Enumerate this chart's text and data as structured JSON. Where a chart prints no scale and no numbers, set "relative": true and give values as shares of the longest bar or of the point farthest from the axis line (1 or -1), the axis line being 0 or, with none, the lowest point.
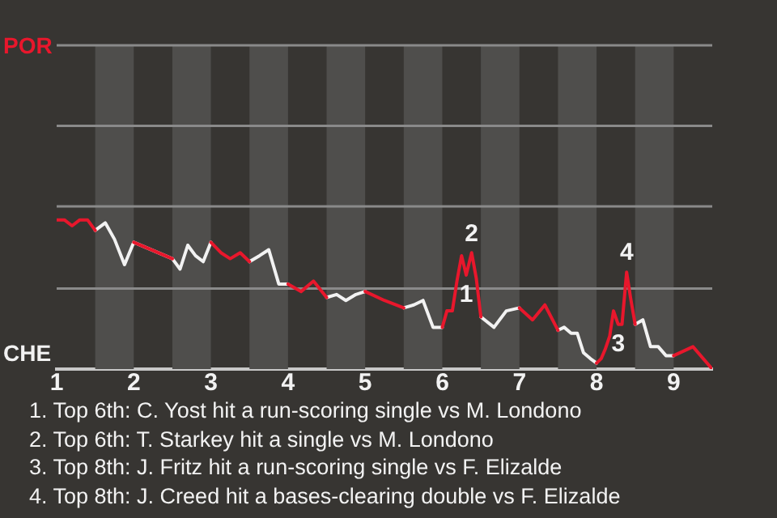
{
  "chart_data": {
    "type": "line",
    "relative": true,
    "x": [
      1.0,
      1.1,
      1.2,
      1.3,
      1.4,
      1.5,
      1.63,
      1.75,
      1.88,
      2.0,
      2.5,
      2.6,
      2.7,
      2.8,
      2.9,
      3.0,
      3.13,
      3.25,
      3.38,
      3.5,
      3.63,
      3.75,
      3.88,
      4.0,
      4.17,
      4.33,
      4.5,
      4.63,
      4.75,
      4.88,
      5.0,
      5.25,
      5.5,
      5.63,
      5.75,
      5.88,
      6.0,
      6.06,
      6.13,
      6.19,
      6.25,
      6.31,
      6.38,
      6.44,
      6.5,
      6.67,
      6.83,
      7.0,
      7.17,
      7.33,
      7.5,
      7.58,
      7.67,
      7.75,
      7.83,
      7.92,
      8.0,
      8.06,
      8.11,
      8.17,
      8.22,
      8.28,
      8.33,
      8.39,
      8.44,
      8.5,
      8.6,
      8.7,
      8.8,
      8.9,
      9.0,
      9.25,
      9.5
    ],
    "xlim": [
      1,
      9.5
    ],
    "xticks": [
      1,
      2,
      3,
      4,
      5,
      6,
      7,
      8,
      9
    ],
    "legend": false,
    "marker": "none",
    "line_style": "solid",
    "series": [
      {
        "color": "#e8172c",
        "values": [
          1.0,
          1.0,
          0.96,
          1.0,
          1.0,
          0.93,
          null,
          null,
          null,
          0.85,
          0.74,
          null,
          null,
          null,
          null,
          0.85,
          0.78,
          0.74,
          0.78,
          0.72,
          null,
          null,
          null,
          0.57,
          0.52,
          0.59,
          0.48,
          null,
          null,
          null,
          0.52,
          0.46,
          0.41,
          null,
          null,
          null,
          0.28,
          0.39,
          0.39,
          0.59,
          0.76,
          0.63,
          0.78,
          0.61,
          0.35,
          null,
          null,
          0.41,
          0.33,
          0.43,
          0.26,
          null,
          null,
          null,
          null,
          null,
          0.04,
          0.07,
          0.13,
          0.22,
          0.39,
          0.3,
          0.3,
          0.65,
          0.48,
          0.3,
          null,
          null,
          null,
          null,
          0.09,
          0.15,
          0
        ]
      },
      {
        "color": "#f2f2f2",
        "values": [
          null,
          null,
          null,
          null,
          null,
          0.93,
          0.98,
          0.87,
          0.7,
          0.85,
          0.74,
          0.67,
          0.83,
          0.76,
          0.72,
          0.85,
          null,
          null,
          null,
          0.72,
          0.76,
          0.8,
          0.57,
          0.57,
          null,
          null,
          0.48,
          0.5,
          0.46,
          0.5,
          0.52,
          null,
          0.41,
          0.43,
          0.46,
          0.28,
          0.28,
          null,
          null,
          null,
          null,
          null,
          null,
          null,
          0.35,
          0.28,
          0.39,
          0.41,
          null,
          null,
          0.26,
          0.28,
          0.24,
          0.24,
          0.11,
          0.07,
          0.04,
          null,
          null,
          null,
          null,
          null,
          null,
          null,
          null,
          0.3,
          0.33,
          0.15,
          0.15,
          0.09,
          0.09,
          null,
          null
        ]
      }
    ],
    "ref_lines": [
      {
        "axis": "y",
        "value": 0.54,
        "color": "#8a8a8a"
      },
      {
        "axis": "y",
        "value": 1.09,
        "color": "#8a8a8a"
      },
      {
        "axis": "y",
        "value": 1.63,
        "color": "#8a8a8a"
      },
      {
        "axis": "y",
        "value": 2.17,
        "color": "#8a8a8a"
      }
    ],
    "bands": [
      {
        "axis": "x",
        "from": 1.5,
        "to": 2.0,
        "color": "#4f4e4c"
      },
      {
        "axis": "x",
        "from": 2.5,
        "to": 3.0,
        "color": "#4f4e4c"
      },
      {
        "axis": "x",
        "from": 3.5,
        "to": 4.0,
        "color": "#4f4e4c"
      },
      {
        "axis": "x",
        "from": 4.5,
        "to": 5.0,
        "color": "#4f4e4c"
      },
      {
        "axis": "x",
        "from": 5.5,
        "to": 6.0,
        "color": "#4f4e4c"
      },
      {
        "axis": "x",
        "from": 6.5,
        "to": 7.0,
        "color": "#4f4e4c"
      },
      {
        "axis": "x",
        "from": 7.5,
        "to": 8.0,
        "color": "#4f4e4c"
      },
      {
        "axis": "x",
        "from": 8.5,
        "to": 9.0,
        "color": "#4f4e4c"
      }
    ],
    "annotations": [
      "POR",
      "CHE",
      {
        "text": "1",
        "x": 6.31,
        "y": 0.63
      },
      {
        "text": "2",
        "x": 6.38,
        "y": 0.78
      },
      {
        "text": "3",
        "x": 8.28,
        "y": 0.3
      },
      {
        "text": "4",
        "x": 8.39,
        "y": 0.65
      },
      "1. Top 6th: C. Yost hit a run-scoring single vs M. Londono",
      "2. Top 6th: T. Starkey hit a single vs M. Londono",
      "3. Top 8th: J. Fritz hit a run-scoring single vs F. Elizalde",
      "4. Top 8th: J. Creed hit a bases-clearing double vs F. Elizalde"
    ]
  }
}
